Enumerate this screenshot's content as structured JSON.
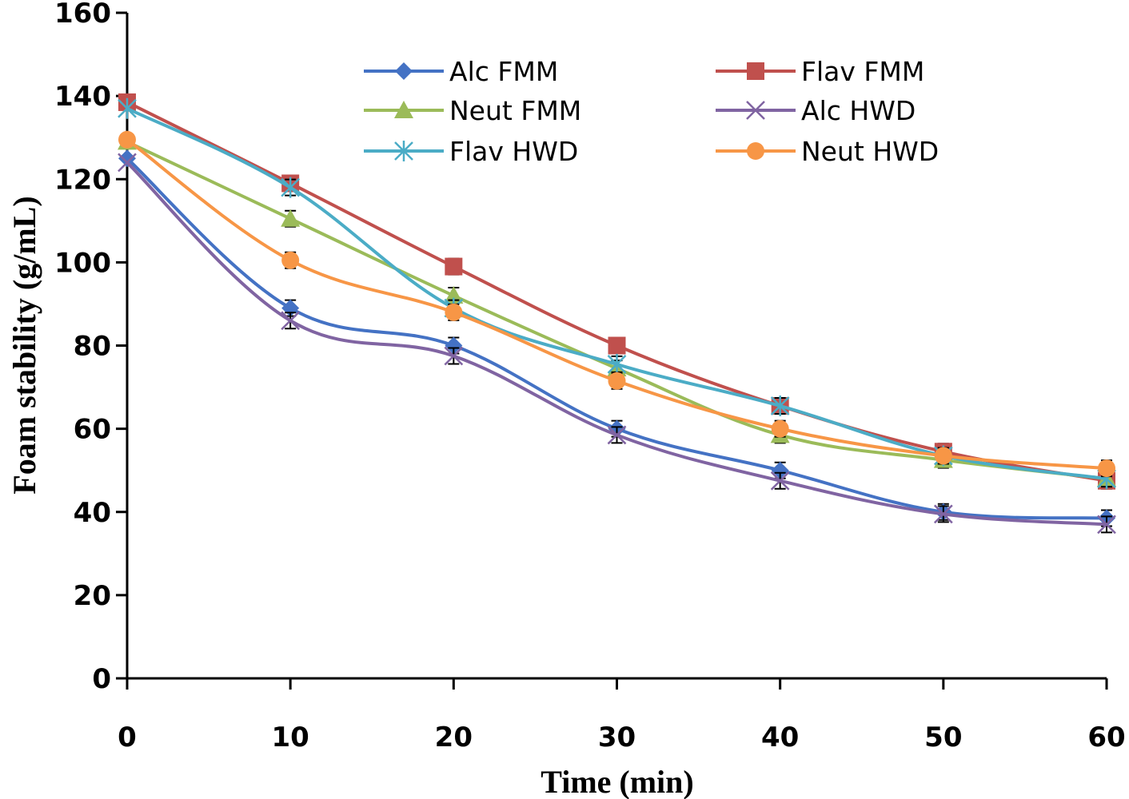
{
  "chart_data": {
    "type": "line",
    "title": "",
    "xlabel": "Time (min)",
    "ylabel": "Foam stability (g/mL)",
    "x": [
      0,
      10,
      20,
      30,
      40,
      50,
      60
    ],
    "xticks": [
      "0",
      "10",
      "20",
      "30",
      "40",
      "50",
      "60"
    ],
    "yticks": [
      "0",
      "20",
      "40",
      "60",
      "80",
      "100",
      "120",
      "140",
      "160"
    ],
    "xlim": [
      0,
      60
    ],
    "ylim": [
      0,
      160
    ],
    "grid": false,
    "legend_position": "top-right",
    "series": [
      {
        "name": "Alc FMM",
        "color": "#4472C4",
        "marker": "diamond",
        "values": [
          125,
          89,
          80,
          60,
          50,
          40,
          38.5
        ]
      },
      {
        "name": "Flav FMM",
        "color": "#C0504D",
        "marker": "square",
        "values": [
          138.5,
          119,
          99,
          80,
          65.5,
          54.5,
          47.5
        ]
      },
      {
        "name": "Neut FMM",
        "color": "#9BBB59",
        "marker": "triangle",
        "values": [
          129,
          110.5,
          92,
          74.5,
          58.5,
          52.5,
          48
        ]
      },
      {
        "name": "Alc HWD",
        "color": "#8064A2",
        "marker": "x",
        "values": [
          124,
          86,
          77.5,
          58.5,
          47.5,
          39.5,
          37
        ]
      },
      {
        "name": "Flav HWD",
        "color": "#4BACC6",
        "marker": "star",
        "values": [
          137,
          118,
          89,
          75.5,
          65.5,
          53.5,
          48
        ]
      },
      {
        "name": "Neut HWD",
        "color": "#F79646",
        "marker": "circle",
        "values": [
          129.5,
          100.5,
          88,
          71.5,
          60,
          53.5,
          50.5
        ]
      }
    ]
  }
}
